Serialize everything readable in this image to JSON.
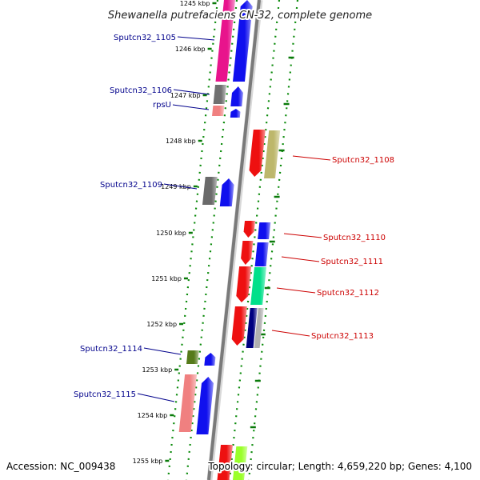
{
  "title": "Shewanella putrefaciens CN-32, complete genome",
  "accession": "Accession: NC_009438",
  "topology": "Topology: circular; Length: 4,659,220 bp; Genes: 4,100",
  "colors": {
    "left_label": "#00008b",
    "right_label": "#cc0000",
    "tick": "#006400"
  },
  "ticks": [
    "1245 kbp",
    "1246 kbp",
    "1247 kbp",
    "1248 kbp",
    "1249 kbp",
    "1250 kbp",
    "1251 kbp",
    "1252 kbp",
    "1253 kbp",
    "1254 kbp",
    "1255 kbp"
  ],
  "left_labels": [
    "Sputcn32_1105",
    "Sputcn32_1106",
    "rpsU",
    "Sputcn32_1109",
    "Sputcn32_1114",
    "Sputcn32_1115"
  ],
  "right_labels": [
    "Sputcn32_1108",
    "Sputcn32_1110",
    "Sputcn32_1111",
    "Sputcn32_1112",
    "Sputcn32_1113"
  ]
}
